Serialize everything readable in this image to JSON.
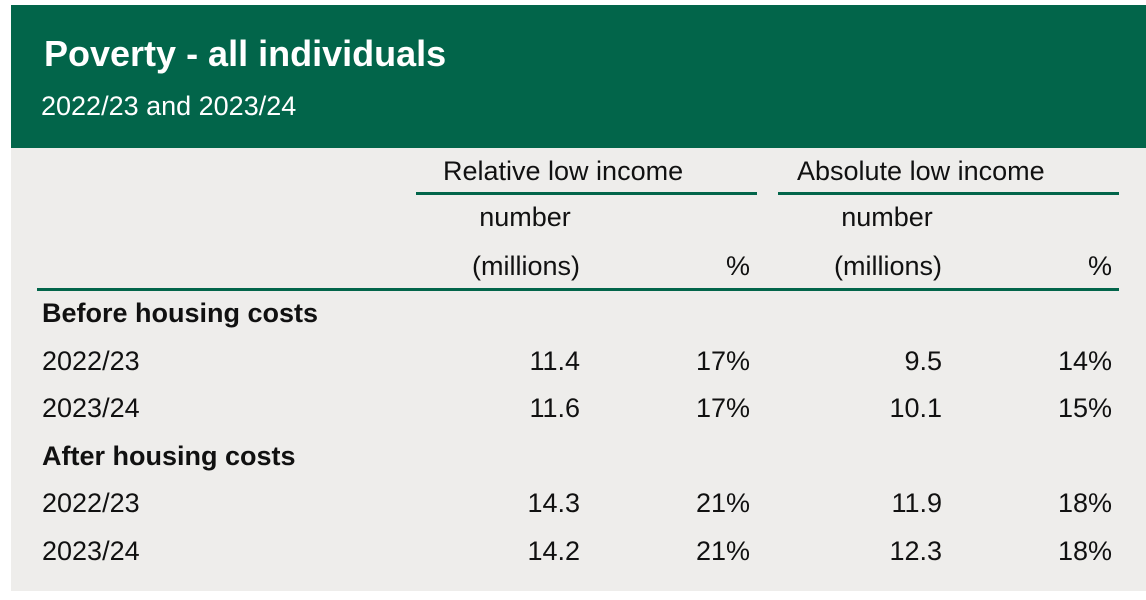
{
  "title": "Poverty - all individuals",
  "subtitle": "2022/23 and 2023/24",
  "chart_data": {
    "type": "table",
    "groups": [
      "Relative low income",
      "Absolute low income"
    ],
    "columns": [
      [
        "number",
        "(millions)"
      ],
      "%",
      [
        "number",
        "(millions)"
      ],
      "%"
    ],
    "sections": [
      {
        "label": "Before housing costs",
        "rows": [
          {
            "year": "2022/23",
            "values": [
              "11.4",
              "17%",
              "9.5",
              "14%"
            ]
          },
          {
            "year": "2023/24",
            "values": [
              "11.6",
              "17%",
              "10.1",
              "15%"
            ]
          }
        ]
      },
      {
        "label": "After housing costs",
        "rows": [
          {
            "year": "2022/23",
            "values": [
              "14.3",
              "21%",
              "11.9",
              "18%"
            ]
          },
          {
            "year": "2023/24",
            "values": [
              "14.2",
              "21%",
              "12.3",
              "18%"
            ]
          }
        ]
      }
    ]
  }
}
